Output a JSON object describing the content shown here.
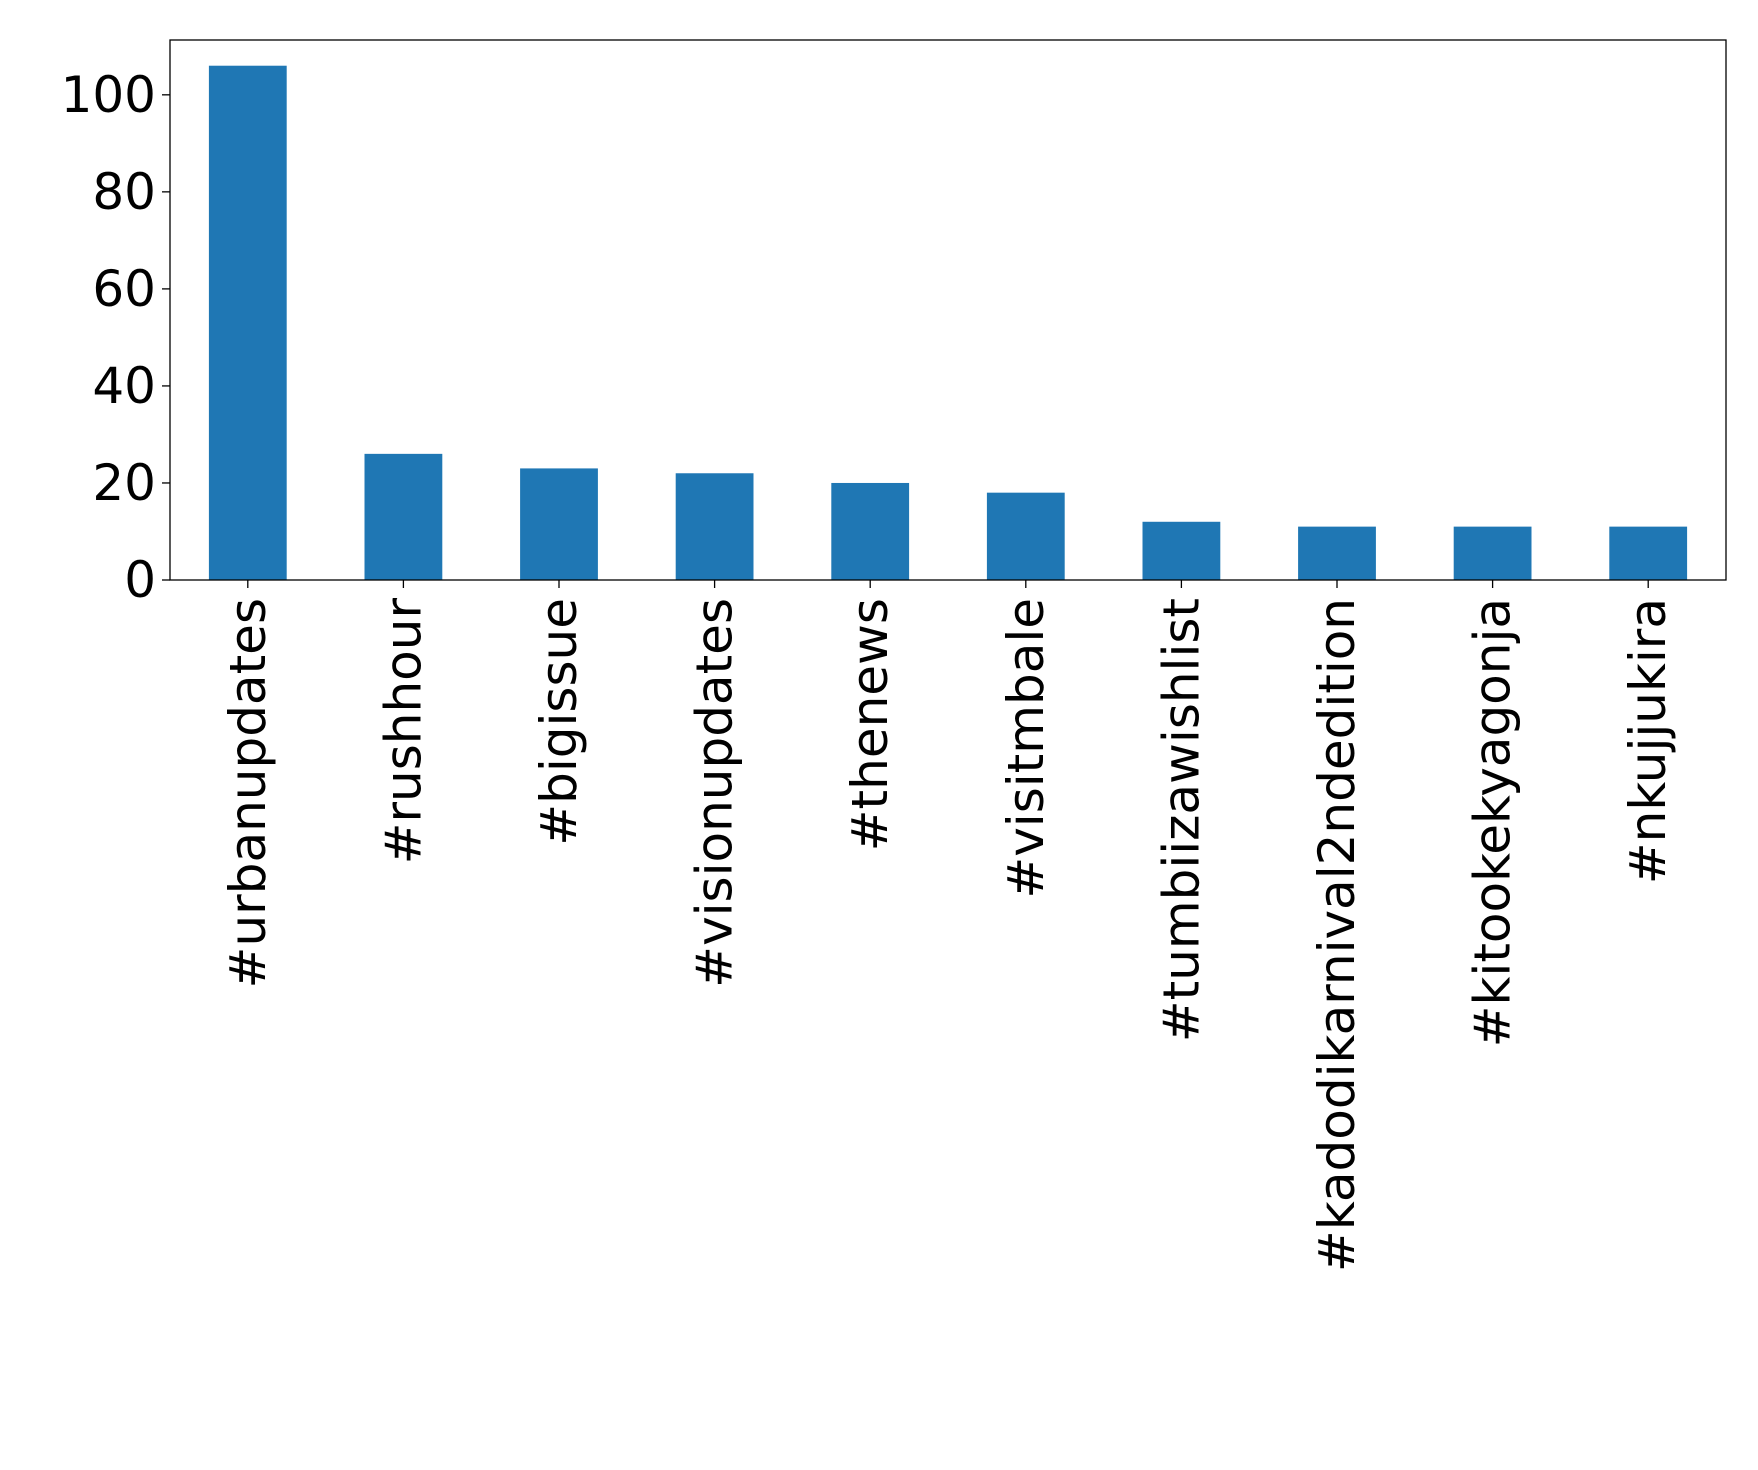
{
  "chart_data": {
    "type": "bar",
    "title": "",
    "xlabel": "",
    "ylabel": "",
    "categories": [
      "#urbanupdates",
      "#rushhour",
      "#bigissue",
      "#visionupdates",
      "#thenews",
      "#visitmbale",
      "#tumbiizawishlist",
      "#kadodikarnival2ndedition",
      "#kitookekyagonja",
      "#nkujjukira"
    ],
    "values": [
      106,
      26,
      23,
      22,
      20,
      18,
      12,
      11,
      11,
      11
    ],
    "ylim": [
      0,
      111.3
    ],
    "yticks": [
      0,
      20,
      40,
      60,
      80,
      100
    ],
    "grid": false,
    "bar_color": "#1f77b4"
  }
}
